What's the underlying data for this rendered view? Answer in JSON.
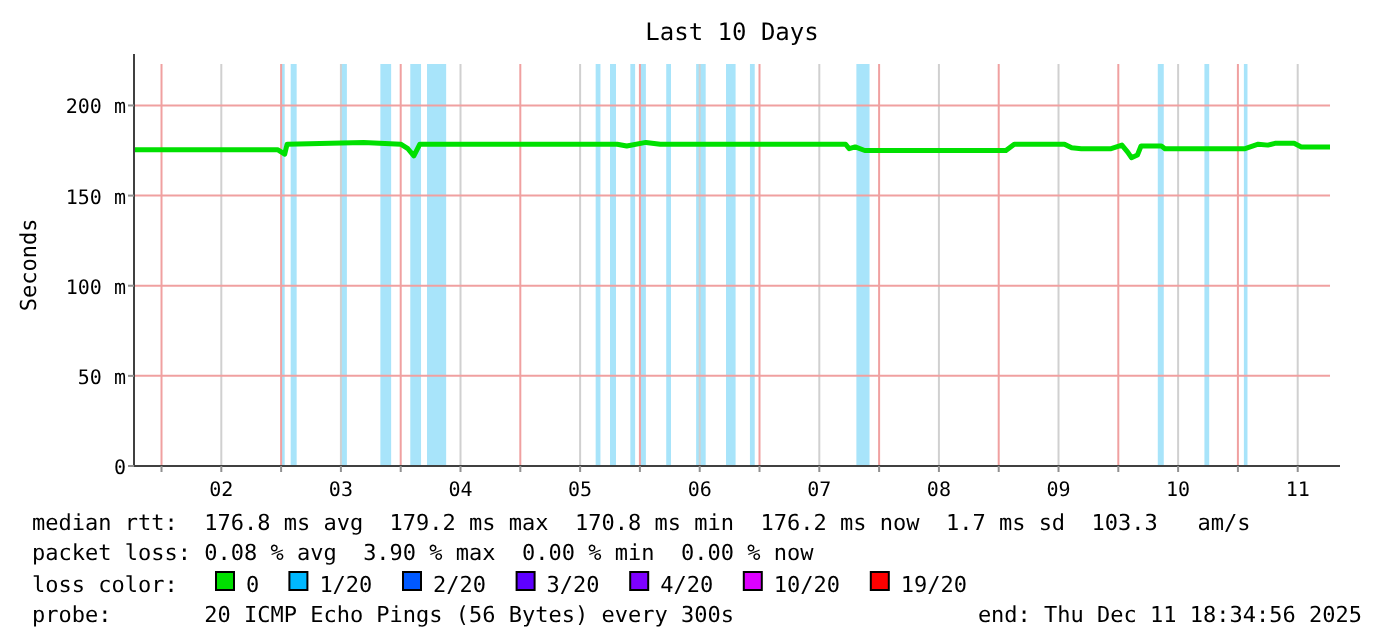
{
  "chart_data": {
    "type": "line",
    "title": "Last 10 Days",
    "ylabel": "Seconds",
    "legend_title": "loss color:",
    "legend": "bottom",
    "grid": true,
    "xlim": [
      1.77,
      11.77
    ],
    "xticks": [
      {
        "value": 2,
        "label": null
      },
      {
        "value": 2.5,
        "label": "02"
      },
      {
        "value": 3,
        "label": null
      },
      {
        "value": 3.5,
        "label": "03"
      },
      {
        "value": 4,
        "label": null
      },
      {
        "value": 4.5,
        "label": "04"
      },
      {
        "value": 5,
        "label": null
      },
      {
        "value": 5.5,
        "label": "05"
      },
      {
        "value": 6,
        "label": null
      },
      {
        "value": 6.5,
        "label": "06"
      },
      {
        "value": 7,
        "label": null
      },
      {
        "value": 7.5,
        "label": "07"
      },
      {
        "value": 8,
        "label": null
      },
      {
        "value": 8.5,
        "label": "08"
      },
      {
        "value": 9,
        "label": null
      },
      {
        "value": 9.5,
        "label": "09"
      },
      {
        "value": 10,
        "label": null
      },
      {
        "value": 10.5,
        "label": "10"
      },
      {
        "value": 11,
        "label": null
      },
      {
        "value": 11.5,
        "label": "11"
      }
    ],
    "ylim": [
      0,
      223
    ],
    "yticks": [
      0,
      {
        "value": 50,
        "label": "50 m"
      },
      {
        "value": 100,
        "label": "100 m"
      },
      {
        "value": 150,
        "label": "150 m"
      },
      {
        "value": 200,
        "label": "200 m"
      }
    ],
    "series": [
      {
        "name": "0",
        "color": "#00e000",
        "x": [
          1.77,
          2.97,
          3.03,
          3.05,
          3.69,
          4.0,
          4.06,
          4.11,
          4.16,
          5.81,
          5.89,
          6.05,
          6.17,
          7.72,
          7.75,
          7.8,
          7.88,
          9.06,
          9.13,
          9.55,
          9.61,
          9.69,
          9.94,
          10.03,
          10.08,
          10.11,
          10.16,
          10.19,
          10.36,
          10.39,
          11.06,
          11.17,
          11.25,
          11.31,
          11.47,
          11.53,
          11.77
        ],
        "values": [
          175.5,
          175.5,
          173,
          178.5,
          179.5,
          178.5,
          176,
          172,
          178.5,
          178.5,
          177.5,
          179.5,
          178.5,
          178.5,
          176,
          177,
          175,
          175,
          178.5,
          178.5,
          176.5,
          176,
          176,
          178,
          174,
          171,
          172.5,
          177.5,
          177.5,
          176,
          176,
          178.5,
          178,
          179,
          179,
          177,
          177
        ]
      },
      {
        "name": "1/20",
        "color": "#00b8ff"
      },
      {
        "name": "2/20",
        "color": "#0059ff"
      },
      {
        "name": "3/20",
        "color": "#5e00ff"
      },
      {
        "name": "4/20",
        "color": "#7e00ff"
      },
      {
        "name": "10/20",
        "color": "#dd00ff"
      },
      {
        "name": "19/20",
        "color": "#ff0000"
      }
    ],
    "bands": [
      {
        "axis": "x",
        "from": 3.0,
        "to": 3.03,
        "color": "#a8e4fa"
      },
      {
        "axis": "x",
        "from": 3.08,
        "to": 3.13,
        "color": "#a8e4fa"
      },
      {
        "axis": "x",
        "from": 3.5,
        "to": 3.55,
        "color": "#a8e4fa"
      },
      {
        "axis": "x",
        "from": 3.83,
        "to": 3.92,
        "color": "#a8e4fa"
      },
      {
        "axis": "x",
        "from": 4.08,
        "to": 4.17,
        "color": "#a8e4fa"
      },
      {
        "axis": "x",
        "from": 4.22,
        "to": 4.38,
        "color": "#a8e4fa"
      },
      {
        "axis": "x",
        "from": 5.63,
        "to": 5.67,
        "color": "#a8e4fa"
      },
      {
        "axis": "x",
        "from": 5.75,
        "to": 5.8,
        "color": "#a8e4fa"
      },
      {
        "axis": "x",
        "from": 5.92,
        "to": 5.96,
        "color": "#a8e4fa"
      },
      {
        "axis": "x",
        "from": 6.0,
        "to": 6.05,
        "color": "#a8e4fa"
      },
      {
        "axis": "x",
        "from": 6.22,
        "to": 6.26,
        "color": "#a8e4fa"
      },
      {
        "axis": "x",
        "from": 6.47,
        "to": 6.55,
        "color": "#a8e4fa"
      },
      {
        "axis": "x",
        "from": 6.72,
        "to": 6.8,
        "color": "#a8e4fa"
      },
      {
        "axis": "x",
        "from": 6.92,
        "to": 6.96,
        "color": "#a8e4fa"
      },
      {
        "axis": "x",
        "from": 7.81,
        "to": 7.92,
        "color": "#a8e4fa"
      },
      {
        "axis": "x",
        "from": 10.33,
        "to": 10.38,
        "color": "#a8e4fa"
      },
      {
        "axis": "x",
        "from": 10.72,
        "to": 10.76,
        "color": "#a8e4fa"
      },
      {
        "axis": "x",
        "from": 11.05,
        "to": 11.08,
        "color": "#a8e4fa"
      }
    ],
    "annotations": [
      "median rtt:  176.8 ms avg  179.2 ms max  170.8 ms min  176.2 ms now  1.7 ms sd  103.3   am/s",
      "packet loss: 0.08 % avg  3.90 % max  0.00 % min  0.00 % now",
      "probe:       20 ICMP Echo Pings (56 Bytes) every 300s",
      "end: Thu Dec 11 18:34:56 2025"
    ]
  }
}
